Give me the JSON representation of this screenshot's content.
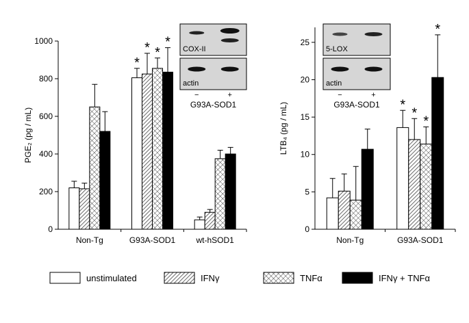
{
  "chart_data": [
    {
      "type": "bar",
      "y_label": "PGE₂ (pg / mL)",
      "categories": [
        "Non-Tg",
        "G93A-SOD1",
        "wt-hSOD1"
      ],
      "ylim": [
        0,
        1000
      ],
      "yticks": [
        0,
        200,
        400,
        600,
        800,
        1000
      ],
      "series": [
        {
          "values": [
            220,
            805,
            50
          ],
          "errors": [
            35,
            50,
            15
          ],
          "annotations": [
            null,
            "*",
            null
          ]
        },
        {
          "values": [
            215,
            825,
            90
          ],
          "errors": [
            30,
            110,
            15
          ],
          "annotations": [
            null,
            "*",
            null
          ]
        },
        {
          "values": [
            650,
            855,
            375
          ],
          "errors": [
            120,
            55,
            45
          ],
          "annotations": [
            null,
            "*",
            null
          ]
        },
        {
          "values": [
            520,
            835,
            400
          ],
          "errors": [
            105,
            130,
            35
          ],
          "annotations": [
            null,
            "*",
            null
          ]
        }
      ],
      "inset": {
        "bands": [
          "COX-II",
          "actin"
        ],
        "lanes": [
          "−",
          "+"
        ],
        "caption": "G93A-SOD1"
      }
    },
    {
      "type": "bar",
      "y_label": "LTB₄ (pg / mL)",
      "categories": [
        "Non-Tg",
        "G93A-SOD1"
      ],
      "ylim": [
        0,
        27
      ],
      "yticks": [
        0,
        5,
        10,
        15,
        20,
        25
      ],
      "series": [
        {
          "values": [
            4.2,
            13.6
          ],
          "errors": [
            2.6,
            2.3
          ],
          "annotations": [
            null,
            "*"
          ]
        },
        {
          "values": [
            5.1,
            12.0
          ],
          "errors": [
            2.3,
            2.8
          ],
          "annotations": [
            null,
            "*"
          ]
        },
        {
          "values": [
            3.9,
            11.4
          ],
          "errors": [
            4.5,
            2.3
          ],
          "annotations": [
            null,
            "*"
          ]
        },
        {
          "values": [
            10.7,
            20.3
          ],
          "errors": [
            2.7,
            5.7
          ],
          "annotations": [
            null,
            "*"
          ]
        }
      ],
      "inset": {
        "bands": [
          "5-LOX",
          "actin"
        ],
        "lanes": [
          "−",
          "+"
        ],
        "caption": "G93A-SOD1"
      }
    }
  ],
  "legend": [
    {
      "name": "unstimulated",
      "pattern": "none"
    },
    {
      "name": "IFNγ",
      "pattern": "diagonal"
    },
    {
      "name": "TNFα",
      "pattern": "cross"
    },
    {
      "name": "IFNγ + TNFα",
      "pattern": "solid"
    }
  ]
}
